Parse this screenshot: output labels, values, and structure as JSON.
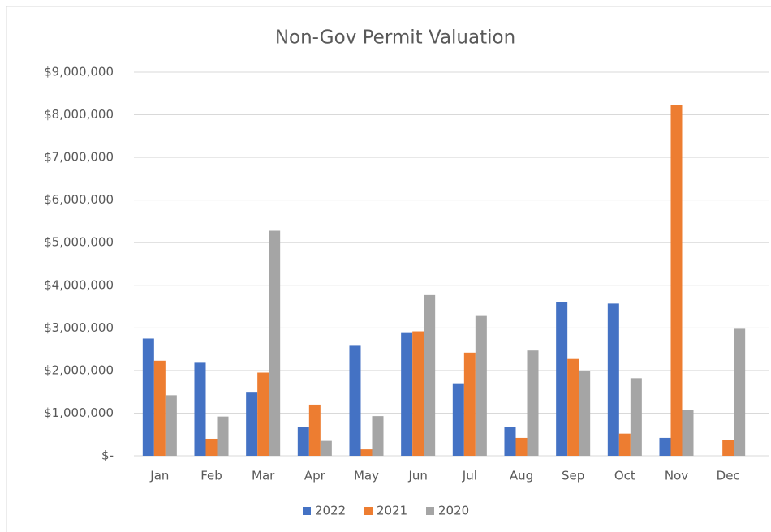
{
  "chart_data": {
    "type": "bar",
    "title": "Non-Gov Permit Valuation",
    "categories": [
      "Jan",
      "Feb",
      "Mar",
      "Apr",
      "May",
      "Jun",
      "Jul",
      "Aug",
      "Sep",
      "Oct",
      "Nov",
      "Dec"
    ],
    "series": [
      {
        "name": "2022",
        "color": "#4472c4",
        "values": [
          2750000,
          2200000,
          1500000,
          680000,
          2580000,
          2880000,
          1700000,
          680000,
          3600000,
          3570000,
          420000,
          null
        ]
      },
      {
        "name": "2021",
        "color": "#ed7d31",
        "values": [
          2230000,
          400000,
          1950000,
          1200000,
          150000,
          2920000,
          2420000,
          420000,
          2270000,
          520000,
          8220000,
          380000
        ]
      },
      {
        "name": "2020",
        "color": "#a5a5a5",
        "values": [
          1420000,
          920000,
          5280000,
          350000,
          930000,
          3770000,
          3280000,
          2470000,
          1980000,
          1820000,
          1080000,
          2980000
        ]
      }
    ],
    "ylim": [
      0,
      9000000
    ],
    "yticks": [
      {
        "value": 0,
        "label": "$-"
      },
      {
        "value": 1000000,
        "label": "$1,000,000"
      },
      {
        "value": 2000000,
        "label": "$2,000,000"
      },
      {
        "value": 3000000,
        "label": "$3,000,000"
      },
      {
        "value": 4000000,
        "label": "$4,000,000"
      },
      {
        "value": 5000000,
        "label": "$5,000,000"
      },
      {
        "value": 6000000,
        "label": "$6,000,000"
      },
      {
        "value": 7000000,
        "label": "$7,000,000"
      },
      {
        "value": 8000000,
        "label": "$8,000,000"
      },
      {
        "value": 9000000,
        "label": "$9,000,000"
      }
    ],
    "grid": true,
    "legend": "bottom"
  }
}
